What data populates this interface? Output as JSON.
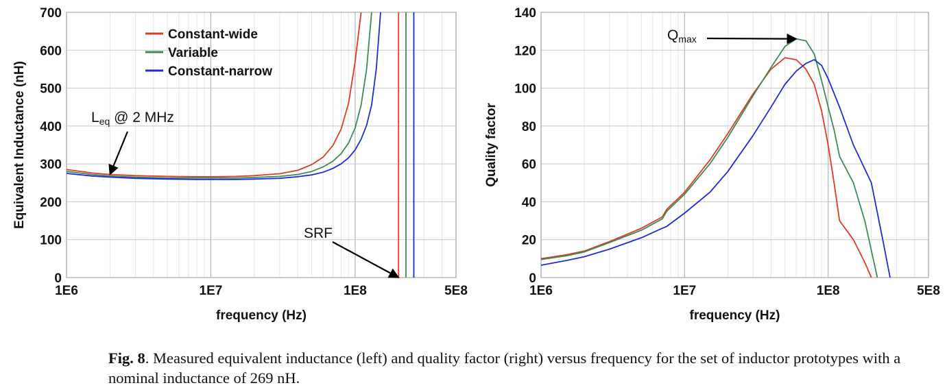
{
  "caption": {
    "label": "Fig. 8",
    "text": ".  Measured equivalent inductance (left) and quality factor (right) versus frequency for the set of inductor prototypes with a nominal inductance of 269 nH."
  },
  "chart_data": [
    {
      "type": "line",
      "xlabel": "frequency (Hz)",
      "ylabel": "Equivalent Inductance (nH)",
      "x_scale": "log",
      "xlim": [
        1000000,
        500000000
      ],
      "ylim": [
        0,
        700
      ],
      "x_ticks": [
        {
          "value": 1000000,
          "label": "1E6"
        },
        {
          "value": 10000000,
          "label": "1E7"
        },
        {
          "value": 100000000,
          "label": "1E8"
        },
        {
          "value": 500000000,
          "label": "5E8"
        }
      ],
      "y_ticks": [
        0,
        100,
        200,
        300,
        400,
        500,
        600,
        700
      ],
      "grid": true,
      "legend": {
        "placement": "top-left",
        "entries": [
          "Constant-wide",
          "Variable",
          "Constant-narrow"
        ]
      },
      "series": [
        {
          "name": "Constant-wide",
          "color": "#e03a25",
          "x": [
            1000000,
            1500000,
            2000000,
            3000000,
            5000000,
            8000000,
            10000000,
            15000000,
            20000000,
            30000000,
            40000000,
            50000000,
            60000000,
            70000000,
            80000000,
            90000000,
            100000000,
            110000000
          ],
          "y": [
            285,
            276,
            272,
            269,
            267,
            266,
            266,
            267,
            269,
            274,
            283,
            298,
            318,
            348,
            392,
            460,
            570,
            700
          ],
          "srf": 200000000
        },
        {
          "name": "Variable",
          "color": "#3c8a55",
          "x": [
            1000000,
            1500000,
            2000000,
            3000000,
            5000000,
            8000000,
            10000000,
            15000000,
            20000000,
            30000000,
            40000000,
            50000000,
            60000000,
            70000000,
            80000000,
            90000000,
            100000000,
            110000000,
            120000000,
            130000000
          ],
          "y": [
            280,
            272,
            268,
            265,
            263,
            263,
            263,
            263,
            264,
            267,
            272,
            280,
            292,
            307,
            327,
            355,
            395,
            455,
            550,
            700
          ],
          "srf": 225000000
        },
        {
          "name": "Constant-narrow",
          "color": "#1c2bd6",
          "x": [
            1000000,
            1500000,
            2000000,
            3000000,
            5000000,
            8000000,
            10000000,
            15000000,
            20000000,
            30000000,
            40000000,
            50000000,
            60000000,
            70000000,
            80000000,
            90000000,
            100000000,
            110000000,
            120000000,
            130000000,
            140000000,
            150000000
          ],
          "y": [
            275,
            268,
            265,
            262,
            260,
            259,
            259,
            259,
            260,
            262,
            266,
            271,
            278,
            288,
            300,
            316,
            337,
            365,
            402,
            455,
            550,
            700
          ],
          "srf": 255000000
        }
      ],
      "annotations": [
        {
          "text": "L",
          "subscript": "eq",
          "suffix": " @ 2 MHz",
          "arrow_to": {
            "x": 2000000,
            "y": 272
          }
        },
        {
          "text": "SRF",
          "arrow_to": {
            "x": 200000000,
            "y": 0
          }
        }
      ]
    },
    {
      "type": "line",
      "xlabel": "frequency (Hz)",
      "ylabel": "Quality factor",
      "x_scale": "log",
      "xlim": [
        1000000,
        500000000
      ],
      "ylim": [
        0,
        140
      ],
      "x_ticks": [
        {
          "value": 1000000,
          "label": "1E6"
        },
        {
          "value": 10000000,
          "label": "1E7"
        },
        {
          "value": 100000000,
          "label": "1E8"
        },
        {
          "value": 500000000,
          "label": "5E8"
        }
      ],
      "y_ticks": [
        0,
        20,
        40,
        60,
        80,
        100,
        120,
        140
      ],
      "grid": true,
      "series": [
        {
          "name": "Constant-wide",
          "color": "#e03a25",
          "x": [
            1000000,
            1500000,
            2000000,
            3000000,
            5000000,
            7000000,
            7500000,
            10000000,
            15000000,
            20000000,
            30000000,
            40000000,
            50000000,
            60000000,
            70000000,
            80000000,
            90000000,
            100000000,
            110000000,
            120000000,
            150000000,
            180000000,
            200000000
          ],
          "y": [
            10,
            12,
            14,
            19,
            26,
            32,
            36,
            45,
            62,
            76,
            97,
            110,
            116,
            115,
            110,
            102,
            88,
            70,
            50,
            30,
            20,
            8,
            0
          ]
        },
        {
          "name": "Variable",
          "color": "#3c8a55",
          "x": [
            1000000,
            1500000,
            2000000,
            3000000,
            5000000,
            7000000,
            7500000,
            10000000,
            15000000,
            20000000,
            30000000,
            40000000,
            50000000,
            60000000,
            70000000,
            80000000,
            90000000,
            100000000,
            110000000,
            120000000,
            150000000,
            180000000,
            220000000
          ],
          "y": [
            9.5,
            11.5,
            13.5,
            18.5,
            25,
            31,
            35,
            44,
            60,
            74,
            96,
            111,
            122,
            126,
            125,
            118,
            104,
            90,
            78,
            64,
            50,
            30,
            0
          ]
        },
        {
          "name": "Constant-narrow",
          "color": "#1c2bd6",
          "x": [
            1000000,
            1500000,
            2000000,
            3000000,
            5000000,
            7000000,
            7500000,
            10000000,
            15000000,
            20000000,
            30000000,
            40000000,
            50000000,
            60000000,
            70000000,
            80000000,
            90000000,
            100000000,
            120000000,
            150000000,
            200000000,
            240000000,
            270000000
          ],
          "y": [
            6.5,
            9,
            11,
            15,
            21,
            26,
            27,
            34,
            45,
            56,
            75,
            90,
            102,
            109,
            113,
            115,
            112,
            105,
            90,
            70,
            50,
            20,
            0
          ]
        }
      ],
      "annotations": [
        {
          "text": "Q",
          "subscript": "max",
          "arrow_to": {
            "x": 60000000,
            "y": 126
          }
        }
      ]
    }
  ]
}
